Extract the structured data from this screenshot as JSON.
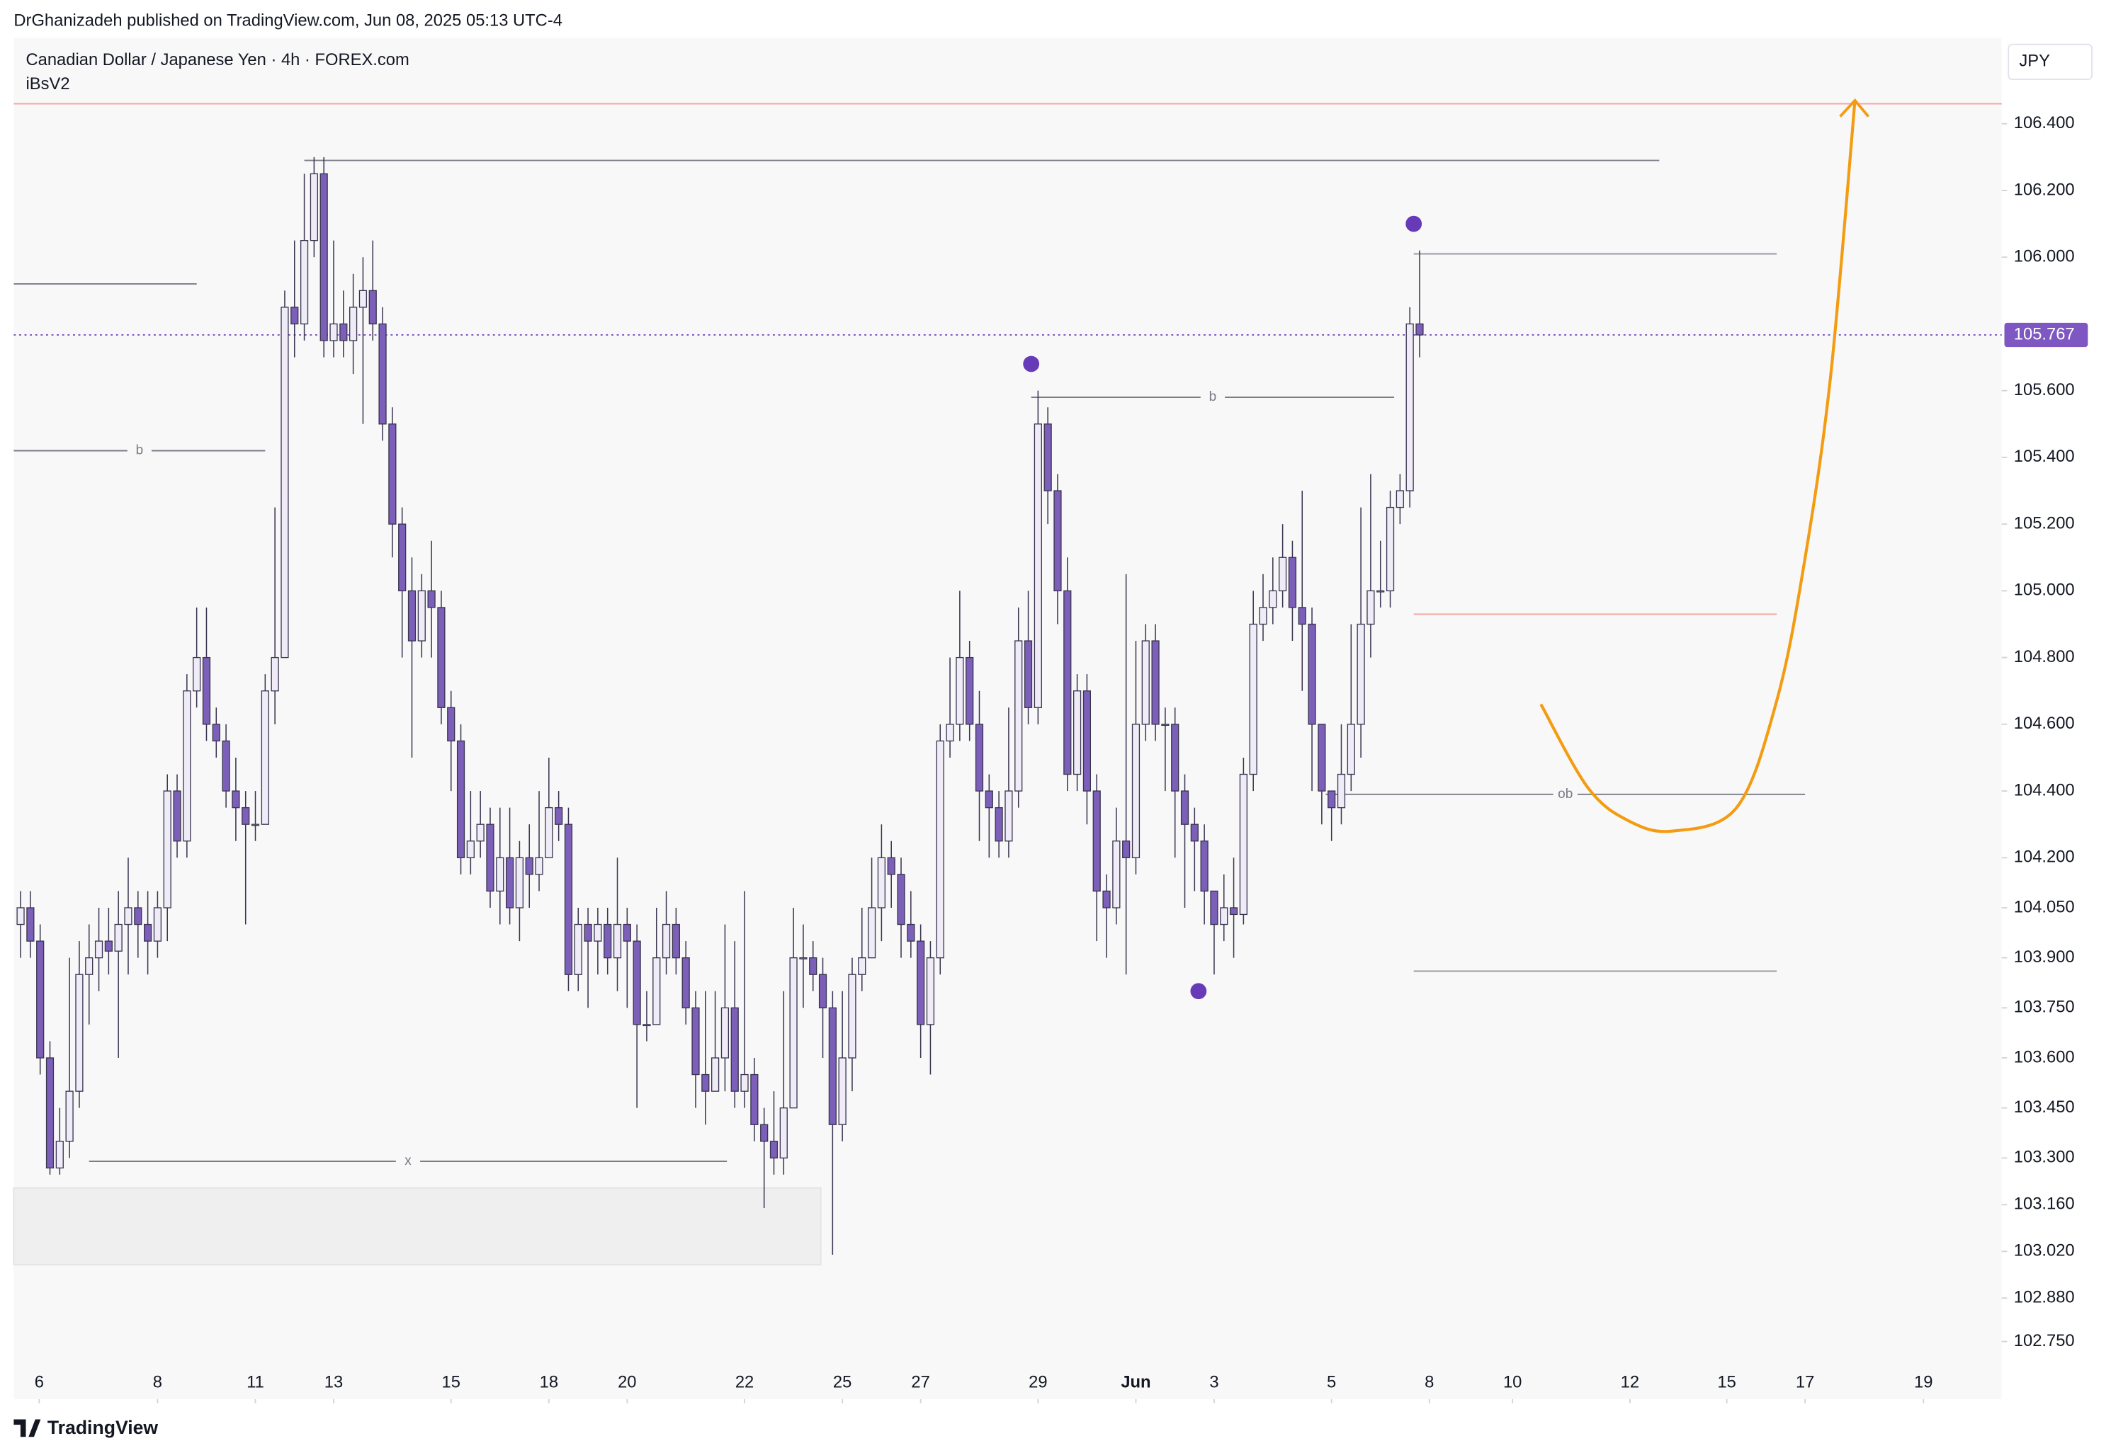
{
  "header": {
    "publisher": "DrGhanizadeh published on TradingView.com, Jun 08, 2025 05:13 UTC-4",
    "brand": "TradingView"
  },
  "chart_data": {
    "type": "candlestick",
    "title": "Canadian Dollar / Japanese Yen · 4h · FOREX.com",
    "indicator": "iBsV2",
    "currency": "JPY",
    "last_price": 105.767,
    "last_price_color": "#7e57c2",
    "up_color": "#efecf7",
    "down_color": "#7b5fb8",
    "border_color": "#3a3550",
    "xlim": [
      -0.7,
      202.5
    ],
    "ylim": [
      102.577,
      106.658
    ],
    "yticks": [
      {
        "value": 106.4,
        "label": "106.400"
      },
      {
        "value": 106.2,
        "label": "106.200"
      },
      {
        "value": 106.0,
        "label": "106.000"
      },
      {
        "value": 105.6,
        "label": "105.600"
      },
      {
        "value": 105.4,
        "label": "105.400"
      },
      {
        "value": 105.2,
        "label": "105.200"
      },
      {
        "value": 105.0,
        "label": "105.000"
      },
      {
        "value": 104.8,
        "label": "104.800"
      },
      {
        "value": 104.6,
        "label": "104.600"
      },
      {
        "value": 104.4,
        "label": "104.400"
      },
      {
        "value": 104.2,
        "label": "104.200"
      },
      {
        "value": 104.05,
        "label": "104.050"
      },
      {
        "value": 103.9,
        "label": "103.900"
      },
      {
        "value": 103.75,
        "label": "103.750"
      },
      {
        "value": 103.6,
        "label": "103.600"
      },
      {
        "value": 103.45,
        "label": "103.450"
      },
      {
        "value": 103.3,
        "label": "103.300"
      },
      {
        "value": 103.16,
        "label": "103.160"
      },
      {
        "value": 103.02,
        "label": "103.020"
      },
      {
        "value": 102.88,
        "label": "102.880"
      },
      {
        "value": 102.75,
        "label": "102.750"
      }
    ],
    "xticks": [
      {
        "value": 1.9,
        "label": "6"
      },
      {
        "value": 14,
        "label": "8"
      },
      {
        "value": 24,
        "label": "11"
      },
      {
        "value": 32,
        "label": "13"
      },
      {
        "value": 44,
        "label": "15"
      },
      {
        "value": 54,
        "label": "18"
      },
      {
        "value": 62,
        "label": "20"
      },
      {
        "value": 74,
        "label": "22"
      },
      {
        "value": 84,
        "label": "25"
      },
      {
        "value": 92,
        "label": "27"
      },
      {
        "value": 104,
        "label": "29"
      },
      {
        "value": 114,
        "label": "Jun"
      },
      {
        "value": 122,
        "label": "3"
      },
      {
        "value": 134,
        "label": "5"
      },
      {
        "value": 144,
        "label": "8"
      },
      {
        "value": 152.5,
        "label": "10"
      },
      {
        "value": 164.5,
        "label": "12"
      },
      {
        "value": 174.4,
        "label": "15"
      },
      {
        "value": 182.4,
        "label": "17"
      },
      {
        "value": 194.5,
        "label": "19"
      }
    ],
    "candles": [
      [
        104.0,
        104.1,
        103.9,
        104.05
      ],
      [
        104.05,
        104.1,
        103.9,
        103.95
      ],
      [
        103.95,
        104.0,
        103.55,
        103.6
      ],
      [
        103.6,
        103.65,
        103.25,
        103.27
      ],
      [
        103.27,
        103.45,
        103.25,
        103.35
      ],
      [
        103.35,
        103.9,
        103.3,
        103.5
      ],
      [
        103.5,
        103.95,
        103.45,
        103.85
      ],
      [
        103.85,
        104.0,
        103.7,
        103.9
      ],
      [
        103.9,
        104.05,
        103.8,
        103.95
      ],
      [
        103.95,
        104.05,
        103.85,
        103.92
      ],
      [
        103.92,
        104.1,
        103.6,
        104.0
      ],
      [
        104.0,
        104.2,
        103.85,
        104.05
      ],
      [
        104.05,
        104.1,
        103.9,
        104.0
      ],
      [
        104.0,
        104.1,
        103.85,
        103.95
      ],
      [
        103.95,
        104.1,
        103.9,
        104.05
      ],
      [
        104.05,
        104.45,
        103.95,
        104.4
      ],
      [
        104.4,
        104.45,
        104.2,
        104.25
      ],
      [
        104.25,
        104.75,
        104.2,
        104.7
      ],
      [
        104.7,
        104.95,
        104.65,
        104.8
      ],
      [
        104.8,
        104.95,
        104.55,
        104.6
      ],
      [
        104.6,
        104.65,
        104.5,
        104.55
      ],
      [
        104.55,
        104.6,
        104.35,
        104.4
      ],
      [
        104.4,
        104.5,
        104.25,
        104.35
      ],
      [
        104.35,
        104.4,
        104.0,
        104.3
      ],
      [
        104.3,
        104.4,
        104.25,
        104.3
      ],
      [
        104.3,
        104.75,
        104.3,
        104.7
      ],
      [
        104.7,
        105.25,
        104.6,
        104.8
      ],
      [
        104.8,
        105.9,
        104.8,
        105.85
      ],
      [
        105.85,
        106.05,
        105.7,
        105.8
      ],
      [
        105.8,
        106.25,
        105.75,
        106.05
      ],
      [
        106.05,
        106.3,
        106.0,
        106.25
      ],
      [
        106.25,
        106.3,
        105.7,
        105.75
      ],
      [
        105.75,
        106.05,
        105.7,
        105.8
      ],
      [
        105.8,
        105.9,
        105.7,
        105.75
      ],
      [
        105.75,
        105.95,
        105.65,
        105.85
      ],
      [
        105.85,
        106.0,
        105.5,
        105.9
      ],
      [
        105.9,
        106.05,
        105.75,
        105.8
      ],
      [
        105.8,
        105.85,
        105.45,
        105.5
      ],
      [
        105.5,
        105.55,
        105.1,
        105.2
      ],
      [
        105.2,
        105.25,
        104.8,
        105.0
      ],
      [
        105.0,
        105.1,
        104.5,
        104.85
      ],
      [
        104.85,
        105.05,
        104.8,
        105.0
      ],
      [
        105.0,
        105.15,
        104.8,
        104.95
      ],
      [
        104.95,
        105.0,
        104.6,
        104.65
      ],
      [
        104.65,
        104.7,
        104.4,
        104.55
      ],
      [
        104.55,
        104.6,
        104.15,
        104.2
      ],
      [
        104.2,
        104.4,
        104.15,
        104.25
      ],
      [
        104.25,
        104.4,
        104.2,
        104.3
      ],
      [
        104.3,
        104.35,
        104.05,
        104.1
      ],
      [
        104.1,
        104.35,
        104.0,
        104.2
      ],
      [
        104.2,
        104.35,
        104.0,
        104.05
      ],
      [
        104.05,
        104.25,
        103.95,
        104.2
      ],
      [
        104.2,
        104.3,
        104.05,
        104.15
      ],
      [
        104.15,
        104.4,
        104.1,
        104.2
      ],
      [
        104.2,
        104.5,
        104.2,
        104.35
      ],
      [
        104.35,
        104.4,
        104.25,
        104.3
      ],
      [
        104.3,
        104.35,
        103.8,
        103.85
      ],
      [
        103.85,
        104.05,
        103.8,
        104.0
      ],
      [
        104.0,
        104.05,
        103.75,
        103.95
      ],
      [
        103.95,
        104.05,
        103.85,
        104.0
      ],
      [
        104.0,
        104.05,
        103.85,
        103.9
      ],
      [
        103.9,
        104.2,
        103.8,
        104.0
      ],
      [
        104.0,
        104.05,
        103.75,
        103.95
      ],
      [
        103.95,
        104.0,
        103.45,
        103.7
      ],
      [
        103.7,
        103.8,
        103.65,
        103.7
      ],
      [
        103.7,
        104.05,
        103.7,
        103.9
      ],
      [
        103.9,
        104.1,
        103.85,
        104.0
      ],
      [
        104.0,
        104.05,
        103.85,
        103.9
      ],
      [
        103.9,
        103.95,
        103.7,
        103.75
      ],
      [
        103.75,
        103.8,
        103.45,
        103.55
      ],
      [
        103.55,
        103.8,
        103.4,
        103.5
      ],
      [
        103.5,
        103.8,
        103.5,
        103.6
      ],
      [
        103.6,
        104.0,
        103.5,
        103.75
      ],
      [
        103.75,
        103.95,
        103.45,
        103.5
      ],
      [
        103.5,
        104.1,
        103.45,
        103.55
      ],
      [
        103.55,
        103.6,
        103.35,
        103.4
      ],
      [
        103.4,
        103.45,
        103.15,
        103.35
      ],
      [
        103.35,
        103.5,
        103.25,
        103.3
      ],
      [
        103.3,
        103.8,
        103.25,
        103.45
      ],
      [
        103.45,
        104.05,
        103.45,
        103.9
      ],
      [
        103.9,
        104.0,
        103.75,
        103.9
      ],
      [
        103.9,
        103.95,
        103.8,
        103.85
      ],
      [
        103.85,
        103.9,
        103.6,
        103.75
      ],
      [
        103.75,
        103.8,
        103.01,
        103.4
      ],
      [
        103.4,
        103.8,
        103.35,
        103.6
      ],
      [
        103.6,
        103.9,
        103.5,
        103.85
      ],
      [
        103.85,
        104.05,
        103.8,
        103.9
      ],
      [
        103.9,
        104.2,
        103.9,
        104.05
      ],
      [
        104.05,
        104.3,
        103.95,
        104.2
      ],
      [
        104.2,
        104.25,
        104.05,
        104.15
      ],
      [
        104.15,
        104.2,
        103.9,
        104.0
      ],
      [
        104.0,
        104.1,
        103.9,
        103.95
      ],
      [
        103.95,
        104.0,
        103.6,
        103.7
      ],
      [
        103.7,
        103.95,
        103.55,
        103.9
      ],
      [
        103.9,
        104.6,
        103.85,
        104.55
      ],
      [
        104.55,
        104.8,
        104.5,
        104.6
      ],
      [
        104.6,
        105.0,
        104.55,
        104.8
      ],
      [
        104.8,
        104.85,
        104.55,
        104.6
      ],
      [
        104.6,
        104.7,
        104.25,
        104.4
      ],
      [
        104.4,
        104.45,
        104.2,
        104.35
      ],
      [
        104.35,
        104.4,
        104.2,
        104.25
      ],
      [
        104.25,
        104.65,
        104.2,
        104.4
      ],
      [
        104.4,
        104.95,
        104.35,
        104.85
      ],
      [
        104.85,
        105.0,
        104.6,
        104.65
      ],
      [
        104.65,
        105.6,
        104.6,
        105.5
      ],
      [
        105.5,
        105.55,
        105.2,
        105.3
      ],
      [
        105.3,
        105.35,
        104.9,
        105.0
      ],
      [
        105.0,
        105.1,
        104.4,
        104.45
      ],
      [
        104.45,
        104.75,
        104.4,
        104.7
      ],
      [
        104.7,
        104.75,
        104.3,
        104.4
      ],
      [
        104.4,
        104.45,
        103.95,
        104.1
      ],
      [
        104.1,
        104.15,
        103.9,
        104.05
      ],
      [
        104.05,
        104.35,
        104.0,
        104.25
      ],
      [
        104.25,
        105.05,
        103.85,
        104.2
      ],
      [
        104.2,
        104.85,
        104.15,
        104.6
      ],
      [
        104.6,
        104.9,
        104.55,
        104.85
      ],
      [
        104.85,
        104.9,
        104.55,
        104.6
      ],
      [
        104.6,
        104.65,
        104.4,
        104.6
      ],
      [
        104.6,
        104.65,
        104.2,
        104.4
      ],
      [
        104.4,
        104.45,
        104.05,
        104.3
      ],
      [
        104.3,
        104.35,
        104.1,
        104.25
      ],
      [
        104.25,
        104.3,
        104.0,
        104.1
      ],
      [
        104.1,
        104.1,
        103.85,
        104.0
      ],
      [
        104.0,
        104.15,
        103.95,
        104.05
      ],
      [
        104.05,
        104.2,
        103.9,
        104.03
      ],
      [
        104.03,
        104.5,
        104.0,
        104.45
      ],
      [
        104.45,
        105.0,
        104.4,
        104.9
      ],
      [
        104.9,
        105.05,
        104.85,
        104.95
      ],
      [
        104.95,
        105.1,
        104.9,
        105.0
      ],
      [
        105.0,
        105.2,
        104.95,
        105.1
      ],
      [
        105.1,
        105.15,
        104.85,
        104.95
      ],
      [
        104.95,
        105.3,
        104.7,
        104.9
      ],
      [
        104.9,
        104.95,
        104.4,
        104.6
      ],
      [
        104.6,
        104.6,
        104.3,
        104.4
      ],
      [
        104.4,
        104.4,
        104.25,
        104.35
      ],
      [
        104.35,
        104.6,
        104.3,
        104.45
      ],
      [
        104.45,
        104.9,
        104.4,
        104.6
      ],
      [
        104.6,
        105.25,
        104.5,
        104.9
      ],
      [
        104.9,
        105.35,
        104.8,
        105.0
      ],
      [
        105.0,
        105.15,
        104.95,
        105.0
      ],
      [
        105.0,
        105.3,
        104.95,
        105.25
      ],
      [
        105.25,
        105.35,
        105.2,
        105.3
      ],
      [
        105.3,
        105.85,
        105.25,
        105.8
      ],
      [
        105.8,
        106.02,
        105.7,
        105.767
      ]
    ],
    "levels": [
      {
        "price": 106.46,
        "from": -0.7,
        "to": 202.5,
        "color": "#f4a79f"
      },
      {
        "price": 106.29,
        "from": 29,
        "to": 167.5,
        "color": "#787b86"
      },
      {
        "price": 105.92,
        "from": -0.7,
        "to": 18,
        "color": "#787b86"
      },
      {
        "price": 105.42,
        "from": -0.7,
        "to": 25,
        "color": "#787b86",
        "label": "b"
      },
      {
        "price": 105.58,
        "from": 103.3,
        "to": 140.4,
        "color": "#787b86",
        "label": "b"
      },
      {
        "price": 106.01,
        "from": 142.4,
        "to": 179.5,
        "color": "#9a9ca5"
      },
      {
        "price": 104.93,
        "from": 142.4,
        "to": 179.5,
        "color": "#f4a79f"
      },
      {
        "price": 103.86,
        "from": 142.4,
        "to": 179.5,
        "color": "#9a9ca5"
      },
      {
        "price": 104.39,
        "from": 133.4,
        "to": 182.4,
        "color": "#787b86",
        "label": "ob"
      },
      {
        "price": 103.29,
        "from": 7,
        "to": 72.2,
        "color": "#787b86",
        "label": "x"
      }
    ],
    "zone": {
      "x": [
        -0.7,
        81.8
      ],
      "y": [
        102.98,
        103.21
      ],
      "color": "#efefef"
    },
    "markers": {
      "color": "#673ab7",
      "points": [
        [
          103.3,
          105.68
        ],
        [
          142.4,
          106.1
        ],
        [
          120.4,
          103.8
        ]
      ]
    },
    "curve": {
      "color": "#f39c12",
      "x": [
        155.4,
        160.2,
        164.4,
        168.9,
        175.4,
        179.5,
        182.3,
        185.0,
        187.5
      ],
      "y": [
        104.66,
        104.41,
        104.31,
        104.28,
        104.35,
        104.67,
        105.08,
        105.64,
        106.47
      ]
    }
  }
}
